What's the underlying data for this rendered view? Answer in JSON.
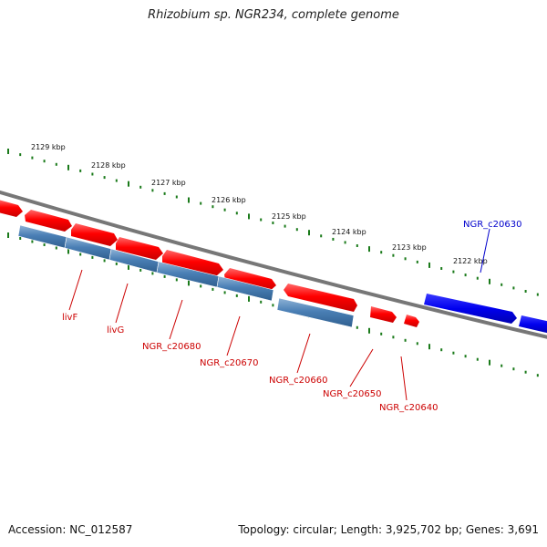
{
  "title": "Rhizobium sp. NGR234, complete genome",
  "footer": {
    "accession": "Accession: NC_012587",
    "topology": "Topology: circular; Length: 3,925,702 bp; Genes: 3,691"
  },
  "colors": {
    "forward_gene": "#ff0000",
    "reverse_gene": "#4a7fb5",
    "highlight_gene": "#0000ee",
    "backbone": "#777777",
    "tick": "#1a7a1a",
    "label_red": "#cc0000",
    "label_blue": "#0000cc"
  },
  "scale_labels": [
    "2129 kbp",
    "2128 kbp",
    "2127 kbp",
    "2126 kbp",
    "2125 kbp",
    "2124 kbp",
    "2123 kbp",
    "2122 kbp"
  ],
  "gene_labels": [
    {
      "name": "livF",
      "color": "red"
    },
    {
      "name": "livG",
      "color": "red"
    },
    {
      "name": "NGR_c20680",
      "color": "red"
    },
    {
      "name": "NGR_c20670",
      "color": "red"
    },
    {
      "name": "NGR_c20660",
      "color": "red"
    },
    {
      "name": "NGR_c20650",
      "color": "red"
    },
    {
      "name": "NGR_c20640",
      "color": "red"
    },
    {
      "name": "NGR_c20630",
      "color": "blue"
    }
  ]
}
